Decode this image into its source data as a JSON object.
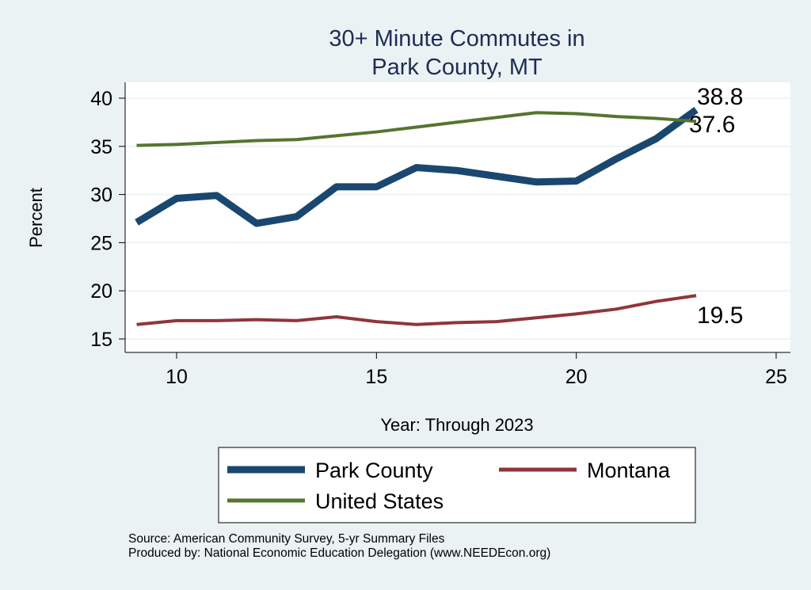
{
  "chart_data": {
    "type": "line",
    "title": [
      "30+ Minute Commutes in",
      "Park County, MT"
    ],
    "xlabel": "Year: Through 2023",
    "ylabel": "Percent",
    "xlim": [
      8.7,
      25.3
    ],
    "ylim": [
      14,
      41.6
    ],
    "xticks": [
      10,
      15,
      20,
      25
    ],
    "yticks": [
      15,
      20,
      25,
      30,
      35,
      40
    ],
    "grid": true,
    "legend_position": "bottom",
    "x": [
      9,
      10,
      11,
      12,
      13,
      14,
      15,
      16,
      17,
      18,
      19,
      20,
      21,
      22,
      23
    ],
    "series": [
      {
        "name": "Park County",
        "color": "#1a476f",
        "values": [
          27.1,
          29.6,
          29.9,
          27.0,
          27.7,
          30.8,
          30.8,
          32.8,
          32.5,
          31.9,
          31.3,
          31.4,
          33.7,
          35.8,
          38.8
        ],
        "end_label": "38.8"
      },
      {
        "name": "Montana",
        "color": "#90353b",
        "values": [
          16.5,
          16.9,
          16.9,
          17.0,
          16.9,
          17.3,
          16.8,
          16.5,
          16.7,
          16.8,
          17.2,
          17.6,
          18.1,
          18.9,
          19.5
        ],
        "end_label": "19.5"
      },
      {
        "name": "United States",
        "color": "#55752f",
        "values": [
          35.1,
          35.2,
          35.4,
          35.6,
          35.7,
          36.1,
          36.5,
          37.0,
          37.5,
          38.0,
          38.5,
          38.4,
          38.1,
          37.9,
          37.6
        ],
        "end_label": "37.6"
      }
    ]
  },
  "notes": {
    "source": "Source: American Community Survey, 5-yr Summary Files",
    "produced": "Produced by: National Economic Education Delegation (www.NEEDEcon.org)"
  }
}
